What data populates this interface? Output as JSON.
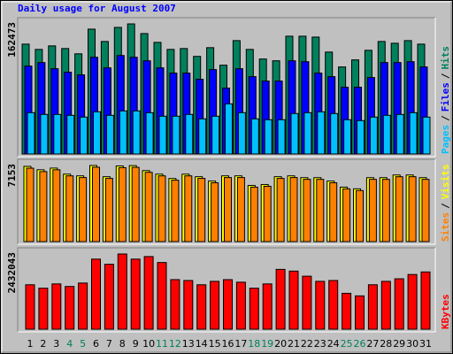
{
  "chart_data": [
    {
      "type": "bar",
      "title": "Daily usage for August 2007",
      "legend_separator": "/",
      "ylim": [
        0,
        162473
      ],
      "yticks": [
        162473
      ],
      "series": [
        {
          "name": "Hits",
          "color": "#00805c",
          "values": [
            137200,
            130600,
            135000,
            131700,
            125100,
            155900,
            140500,
            158100,
            162473,
            150400,
            139400,
            130600,
            131700,
            121900,
            132800,
            110900,
            141600,
            130600,
            118600,
            116400,
            147100,
            147100,
            146000,
            127300,
            108700,
            117500,
            129500,
            140500,
            138300,
            141600,
            137200
          ]
        },
        {
          "name": "Files",
          "color": "#0000ff",
          "values": [
            109800,
            114200,
            106500,
            102100,
            98800,
            120800,
            107600,
            123000,
            120800,
            116400,
            107600,
            101000,
            101000,
            93300,
            105400,
            82300,
            106500,
            96600,
            91100,
            91100,
            116400,
            115300,
            101000,
            96600,
            83400,
            83400,
            95500,
            114200,
            114200,
            115300,
            108700
          ]
        },
        {
          "name": "Pages",
          "color": "#00c0ff",
          "values": [
            51600,
            49400,
            49400,
            48300,
            46100,
            52700,
            48300,
            53800,
            53800,
            51600,
            47200,
            47200,
            49400,
            43900,
            47200,
            62600,
            51600,
            43900,
            42800,
            42800,
            50500,
            51600,
            52700,
            50500,
            42800,
            41700,
            46100,
            48300,
            49400,
            51600,
            46100
          ]
        }
      ]
    },
    {
      "type": "bar",
      "legend_separator": "/",
      "ylim": [
        0,
        7153
      ],
      "yticks": [
        7153
      ],
      "series": [
        {
          "name": "Visits",
          "color": "#ffff00",
          "values": [
            7070,
            6750,
            6910,
            6340,
            6180,
            7153,
            6100,
            7110,
            7140,
            6670,
            6340,
            5930,
            6340,
            6100,
            5690,
            6180,
            6180,
            5280,
            5360,
            6100,
            6180,
            6010,
            6010,
            5690,
            5120,
            4960,
            6010,
            6010,
            6260,
            6260,
            6010
          ]
        },
        {
          "name": "Sites",
          "color": "#ff8000",
          "values": [
            6900,
            6580,
            6750,
            6180,
            6020,
            6990,
            5940,
            6950,
            6980,
            6510,
            6180,
            5770,
            6180,
            5940,
            5530,
            6020,
            6020,
            5120,
            5200,
            5940,
            6020,
            5850,
            5850,
            5530,
            4960,
            4800,
            5850,
            5850,
            6100,
            6100,
            5850
          ]
        }
      ]
    },
    {
      "type": "bar",
      "ylim": [
        0,
        2432043
      ],
      "yticks": [
        2432043
      ],
      "categories": [
        "1",
        "2",
        "3",
        "4",
        "5",
        "6",
        "7",
        "8",
        "9",
        "10",
        "11",
        "12",
        "13",
        "14",
        "15",
        "16",
        "17",
        "18",
        "19",
        "20",
        "21",
        "22",
        "23",
        "24",
        "25",
        "26",
        "27",
        "28",
        "29",
        "30",
        "31"
      ],
      "category_colors": [
        "#000000",
        "#000000",
        "#000000",
        "#00805c",
        "#00805c",
        "#000000",
        "#000000",
        "#000000",
        "#000000",
        "#000000",
        "#00805c",
        "#00805c",
        "#000000",
        "#000000",
        "#000000",
        "#000000",
        "#000000",
        "#00805c",
        "#00805c",
        "#000000",
        "#000000",
        "#000000",
        "#000000",
        "#000000",
        "#00805c",
        "#00805c",
        "#000000",
        "#000000",
        "#000000",
        "#000000",
        "#000000"
      ],
      "series": [
        {
          "name": "KBytes",
          "color": "#ff0000",
          "values": [
            1437100,
            1326600,
            1464800,
            1381900,
            1492400,
            2266200,
            2100400,
            2432043,
            2266200,
            2349100,
            2155700,
            1602900,
            1575300,
            1437100,
            1547700,
            1602900,
            1520000,
            1326600,
            1464800,
            1934600,
            1879300,
            1713500,
            1547700,
            1575300,
            1160800,
            1077800,
            1437100,
            1547700,
            1630600,
            1768800,
            1851700
          ]
        }
      ]
    }
  ]
}
